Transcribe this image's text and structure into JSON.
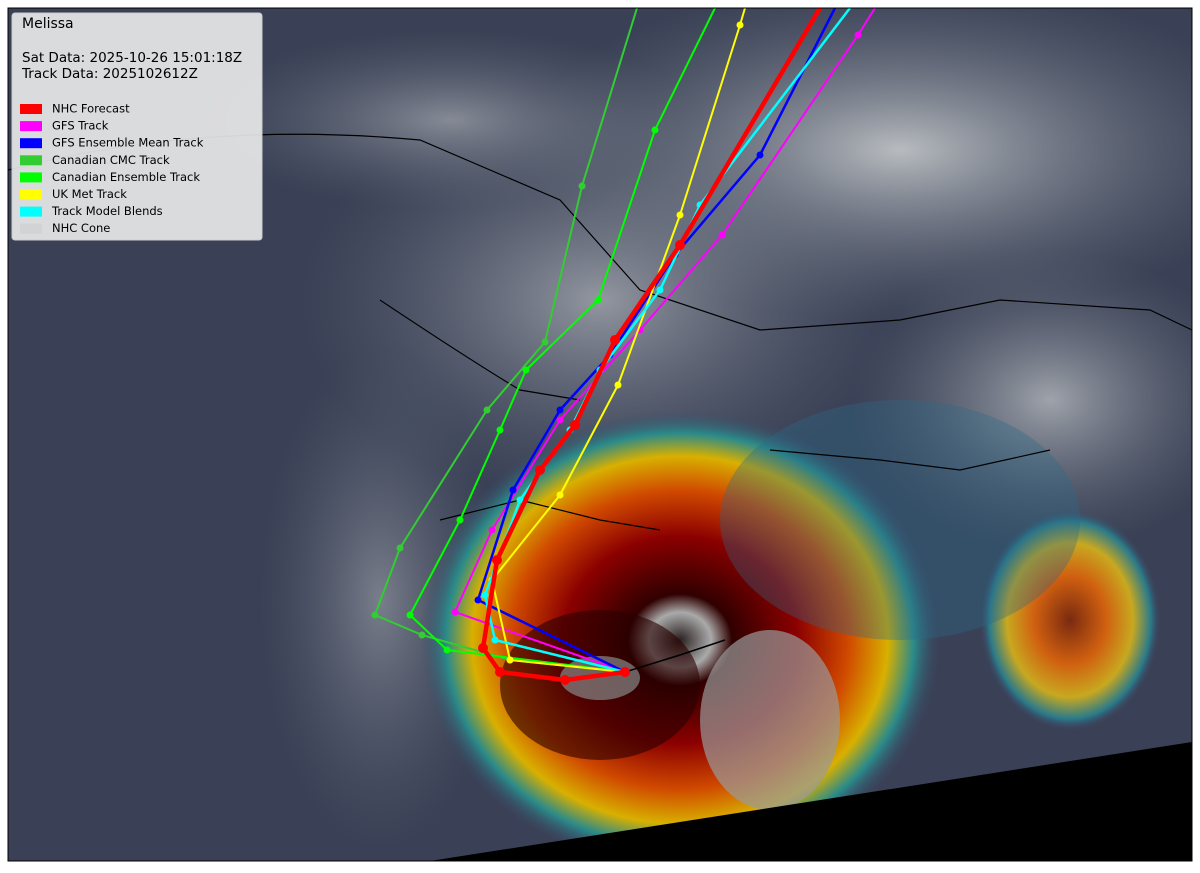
{
  "header": {
    "title": "Melissa",
    "sat_data": "Sat Data: 2025-10-26 15:01:18Z",
    "track_data": "Track Data: 2025102612Z"
  },
  "legend": [
    {
      "label": "NHC Forecast",
      "color": "#ff0000"
    },
    {
      "label": "GFS Track",
      "color": "#ff00ff"
    },
    {
      "label": "GFS Ensemble Mean Track",
      "color": "#0000ff"
    },
    {
      "label": "Canadian CMC Track",
      "color": "#32cd32"
    },
    {
      "label": "Canadian Ensemble Track",
      "color": "#00ff00"
    },
    {
      "label": "UK Met Track",
      "color": "#ffff00"
    },
    {
      "label": "Track Model Blends",
      "color": "#00ffff"
    },
    {
      "label": "NHC Cone",
      "color": "#d3d3d3"
    }
  ]
}
